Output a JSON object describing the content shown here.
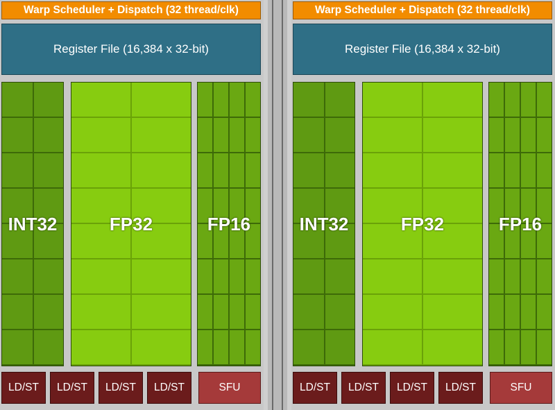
{
  "panels": [
    {
      "warp_label": "Warp Scheduler + Dispatch (32 thread/clk)",
      "register_file_label": "Register File (16,384 x 32-bit)",
      "units": {
        "int32": "INT32",
        "fp32": "FP32",
        "fp16": "FP16"
      },
      "ldst_labels": [
        "LD/ST",
        "LD/ST",
        "LD/ST",
        "LD/ST"
      ],
      "sfu_label": "SFU"
    },
    {
      "warp_label": "Warp Scheduler + Dispatch (32 thread/clk)",
      "register_file_label": "Register File (16,384 x 32-bit)",
      "units": {
        "int32": "INT32",
        "fp32": "FP32",
        "fp16": "FP16"
      },
      "ldst_labels": [
        "LD/ST",
        "LD/ST",
        "LD/ST",
        "LD/ST"
      ],
      "sfu_label": "SFU"
    }
  ],
  "colors": {
    "warp": "#f28c00",
    "register_file": "#2f6f86",
    "int32": "#5f9a12",
    "fp32": "#87cc10",
    "fp16": "#6aa812",
    "ldst": "#6b1c1c",
    "sfu": "#a53a3a"
  }
}
